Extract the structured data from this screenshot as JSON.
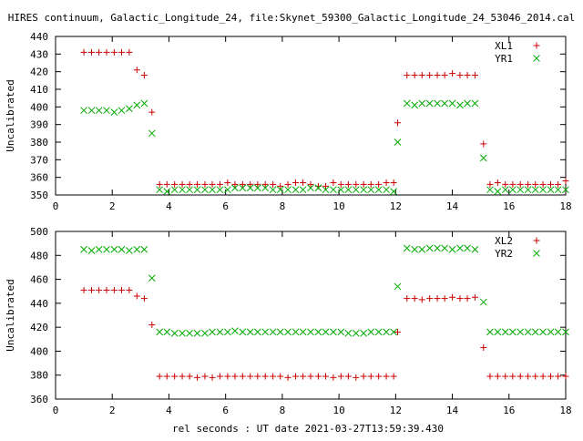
{
  "page": {
    "title": "HIRES continuum, Galactic_Longitude_24, file:Skynet_59300_Galactic_Longitude_24_53046_2014.cal",
    "xlabel": "rel seconds : UT date 2021-03-27T13:59:39.430"
  },
  "colors": {
    "red": "#cc0000",
    "green": "#00aa00"
  },
  "chart_data": [
    {
      "type": "scatter",
      "title": "HIRES continuum, Galactic_Longitude_24, file:Skynet_59300_Galactic_Longitude_24_53046_2014.cal",
      "ylabel": "Uncalibrated",
      "xlim": [
        0,
        18
      ],
      "ylim": [
        350,
        440
      ],
      "xticks": [
        0,
        2,
        4,
        6,
        8,
        10,
        12,
        14,
        16,
        18
      ],
      "yticks": [
        350,
        360,
        370,
        380,
        390,
        400,
        410,
        420,
        430,
        440
      ],
      "legend": "top-right",
      "series": [
        {
          "name": "XL1",
          "marker": "plus",
          "color": "#cc0000",
          "points": [
            [
              1.0,
              431
            ],
            [
              1.27,
              431
            ],
            [
              1.53,
              431
            ],
            [
              1.8,
              431
            ],
            [
              2.07,
              431
            ],
            [
              2.33,
              431
            ],
            [
              2.6,
              431
            ],
            [
              2.87,
              421
            ],
            [
              3.13,
              418
            ],
            [
              3.4,
              397
            ],
            [
              3.67,
              356
            ],
            [
              3.93,
              356
            ],
            [
              4.2,
              356
            ],
            [
              4.47,
              356
            ],
            [
              4.73,
              356
            ],
            [
              5.0,
              356
            ],
            [
              5.27,
              356
            ],
            [
              5.53,
              356
            ],
            [
              5.8,
              356
            ],
            [
              6.07,
              357
            ],
            [
              6.33,
              356
            ],
            [
              6.6,
              356
            ],
            [
              6.87,
              356
            ],
            [
              7.13,
              356
            ],
            [
              7.4,
              356
            ],
            [
              7.67,
              356
            ],
            [
              7.93,
              355
            ],
            [
              8.2,
              356
            ],
            [
              8.47,
              357
            ],
            [
              8.73,
              357
            ],
            [
              9.0,
              356
            ],
            [
              9.27,
              355
            ],
            [
              9.53,
              355
            ],
            [
              9.8,
              357
            ],
            [
              10.07,
              356
            ],
            [
              10.33,
              356
            ],
            [
              10.6,
              356
            ],
            [
              10.87,
              356
            ],
            [
              11.13,
              356
            ],
            [
              11.4,
              356
            ],
            [
              11.67,
              357
            ],
            [
              11.93,
              357
            ],
            [
              12.07,
              391
            ],
            [
              12.4,
              418
            ],
            [
              12.67,
              418
            ],
            [
              12.93,
              418
            ],
            [
              13.2,
              418
            ],
            [
              13.47,
              418
            ],
            [
              13.73,
              418
            ],
            [
              14.0,
              419
            ],
            [
              14.27,
              418
            ],
            [
              14.53,
              418
            ],
            [
              14.8,
              418
            ],
            [
              15.1,
              379
            ],
            [
              15.33,
              356
            ],
            [
              15.6,
              357
            ],
            [
              15.87,
              356
            ],
            [
              16.13,
              356
            ],
            [
              16.4,
              356
            ],
            [
              16.67,
              356
            ],
            [
              16.93,
              356
            ],
            [
              17.2,
              356
            ],
            [
              17.47,
              356
            ],
            [
              17.73,
              356
            ],
            [
              18.0,
              358
            ]
          ]
        },
        {
          "name": "YR1",
          "marker": "cross",
          "color": "#00aa00",
          "points": [
            [
              1.0,
              398
            ],
            [
              1.27,
              398
            ],
            [
              1.53,
              398
            ],
            [
              1.8,
              398
            ],
            [
              2.07,
              397
            ],
            [
              2.33,
              398
            ],
            [
              2.6,
              399
            ],
            [
              2.87,
              401
            ],
            [
              3.13,
              402
            ],
            [
              3.4,
              385
            ],
            [
              3.67,
              353
            ],
            [
              3.93,
              352
            ],
            [
              4.2,
              353
            ],
            [
              4.47,
              353
            ],
            [
              4.73,
              353
            ],
            [
              5.0,
              353
            ],
            [
              5.27,
              353
            ],
            [
              5.53,
              353
            ],
            [
              5.8,
              353
            ],
            [
              6.07,
              353
            ],
            [
              6.33,
              354
            ],
            [
              6.6,
              354
            ],
            [
              6.87,
              354
            ],
            [
              7.13,
              354
            ],
            [
              7.4,
              354
            ],
            [
              7.67,
              353
            ],
            [
              7.93,
              353
            ],
            [
              8.2,
              353
            ],
            [
              8.47,
              353
            ],
            [
              8.73,
              353
            ],
            [
              9.0,
              354
            ],
            [
              9.27,
              354
            ],
            [
              9.53,
              353
            ],
            [
              9.8,
              353
            ],
            [
              10.07,
              353
            ],
            [
              10.33,
              353
            ],
            [
              10.6,
              353
            ],
            [
              10.87,
              353
            ],
            [
              11.13,
              353
            ],
            [
              11.4,
              353
            ],
            [
              11.67,
              353
            ],
            [
              11.93,
              352
            ],
            [
              12.07,
              380
            ],
            [
              12.4,
              402
            ],
            [
              12.67,
              401
            ],
            [
              12.93,
              402
            ],
            [
              13.2,
              402
            ],
            [
              13.47,
              402
            ],
            [
              13.73,
              402
            ],
            [
              14.0,
              402
            ],
            [
              14.27,
              401
            ],
            [
              14.53,
              402
            ],
            [
              14.8,
              402
            ],
            [
              15.1,
              371
            ],
            [
              15.33,
              353
            ],
            [
              15.6,
              352
            ],
            [
              15.87,
              353
            ],
            [
              16.13,
              353
            ],
            [
              16.4,
              353
            ],
            [
              16.67,
              353
            ],
            [
              16.93,
              353
            ],
            [
              17.2,
              353
            ],
            [
              17.47,
              353
            ],
            [
              17.73,
              353
            ],
            [
              18.0,
              353
            ]
          ]
        }
      ]
    },
    {
      "type": "scatter",
      "ylabel": "Uncalibrated",
      "xlabel": "rel seconds : UT date 2021-03-27T13:59:39.430",
      "xlim": [
        0,
        18
      ],
      "ylim": [
        360,
        500
      ],
      "xticks": [
        0,
        2,
        4,
        6,
        8,
        10,
        12,
        14,
        16,
        18
      ],
      "yticks": [
        360,
        380,
        400,
        420,
        440,
        460,
        480,
        500
      ],
      "legend": "top-right",
      "series": [
        {
          "name": "XL2",
          "marker": "plus",
          "color": "#cc0000",
          "points": [
            [
              1.0,
              451
            ],
            [
              1.27,
              451
            ],
            [
              1.53,
              451
            ],
            [
              1.8,
              451
            ],
            [
              2.07,
              451
            ],
            [
              2.33,
              451
            ],
            [
              2.6,
              451
            ],
            [
              2.87,
              446
            ],
            [
              3.13,
              444
            ],
            [
              3.4,
              422
            ],
            [
              3.67,
              379
            ],
            [
              3.93,
              379
            ],
            [
              4.2,
              379
            ],
            [
              4.47,
              379
            ],
            [
              4.73,
              379
            ],
            [
              5.0,
              378
            ],
            [
              5.27,
              379
            ],
            [
              5.53,
              378
            ],
            [
              5.8,
              379
            ],
            [
              6.07,
              379
            ],
            [
              6.33,
              379
            ],
            [
              6.6,
              379
            ],
            [
              6.87,
              379
            ],
            [
              7.13,
              379
            ],
            [
              7.4,
              379
            ],
            [
              7.67,
              379
            ],
            [
              7.93,
              379
            ],
            [
              8.2,
              378
            ],
            [
              8.47,
              379
            ],
            [
              8.73,
              379
            ],
            [
              9.0,
              379
            ],
            [
              9.27,
              379
            ],
            [
              9.53,
              379
            ],
            [
              9.8,
              378
            ],
            [
              10.07,
              379
            ],
            [
              10.33,
              379
            ],
            [
              10.6,
              378
            ],
            [
              10.87,
              379
            ],
            [
              11.13,
              379
            ],
            [
              11.4,
              379
            ],
            [
              11.67,
              379
            ],
            [
              11.93,
              379
            ],
            [
              12.07,
              416
            ],
            [
              12.4,
              444
            ],
            [
              12.67,
              444
            ],
            [
              12.93,
              443
            ],
            [
              13.2,
              444
            ],
            [
              13.47,
              444
            ],
            [
              13.73,
              444
            ],
            [
              14.0,
              445
            ],
            [
              14.27,
              444
            ],
            [
              14.53,
              444
            ],
            [
              14.8,
              445
            ],
            [
              15.1,
              403
            ],
            [
              15.33,
              379
            ],
            [
              15.6,
              379
            ],
            [
              15.87,
              379
            ],
            [
              16.13,
              379
            ],
            [
              16.4,
              379
            ],
            [
              16.67,
              379
            ],
            [
              16.93,
              379
            ],
            [
              17.2,
              379
            ],
            [
              17.47,
              379
            ],
            [
              17.73,
              379
            ],
            [
              18.0,
              379
            ]
          ]
        },
        {
          "name": "YR2",
          "marker": "cross",
          "color": "#00aa00",
          "points": [
            [
              1.0,
              485
            ],
            [
              1.27,
              484
            ],
            [
              1.53,
              485
            ],
            [
              1.8,
              485
            ],
            [
              2.07,
              485
            ],
            [
              2.33,
              485
            ],
            [
              2.6,
              484
            ],
            [
              2.87,
              485
            ],
            [
              3.13,
              485
            ],
            [
              3.4,
              461
            ],
            [
              3.67,
              416
            ],
            [
              3.93,
              416
            ],
            [
              4.2,
              415
            ],
            [
              4.47,
              415
            ],
            [
              4.73,
              415
            ],
            [
              5.0,
              415
            ],
            [
              5.27,
              415
            ],
            [
              5.53,
              416
            ],
            [
              5.8,
              416
            ],
            [
              6.07,
              416
            ],
            [
              6.33,
              417
            ],
            [
              6.6,
              416
            ],
            [
              6.87,
              416
            ],
            [
              7.13,
              416
            ],
            [
              7.4,
              416
            ],
            [
              7.67,
              416
            ],
            [
              7.93,
              416
            ],
            [
              8.2,
              416
            ],
            [
              8.47,
              416
            ],
            [
              8.73,
              416
            ],
            [
              9.0,
              416
            ],
            [
              9.27,
              416
            ],
            [
              9.53,
              416
            ],
            [
              9.8,
              416
            ],
            [
              10.07,
              416
            ],
            [
              10.33,
              415
            ],
            [
              10.6,
              415
            ],
            [
              10.87,
              415
            ],
            [
              11.13,
              416
            ],
            [
              11.4,
              416
            ],
            [
              11.67,
              416
            ],
            [
              11.93,
              416
            ],
            [
              12.07,
              454
            ],
            [
              12.4,
              486
            ],
            [
              12.67,
              485
            ],
            [
              12.93,
              485
            ],
            [
              13.2,
              486
            ],
            [
              13.47,
              486
            ],
            [
              13.73,
              486
            ],
            [
              14.0,
              485
            ],
            [
              14.27,
              486
            ],
            [
              14.53,
              486
            ],
            [
              14.8,
              485
            ],
            [
              15.1,
              441
            ],
            [
              15.33,
              416
            ],
            [
              15.6,
              416
            ],
            [
              15.87,
              416
            ],
            [
              16.13,
              416
            ],
            [
              16.4,
              416
            ],
            [
              16.67,
              416
            ],
            [
              16.93,
              416
            ],
            [
              17.2,
              416
            ],
            [
              17.47,
              416
            ],
            [
              17.73,
              416
            ],
            [
              18.0,
              416
            ]
          ]
        }
      ]
    }
  ]
}
